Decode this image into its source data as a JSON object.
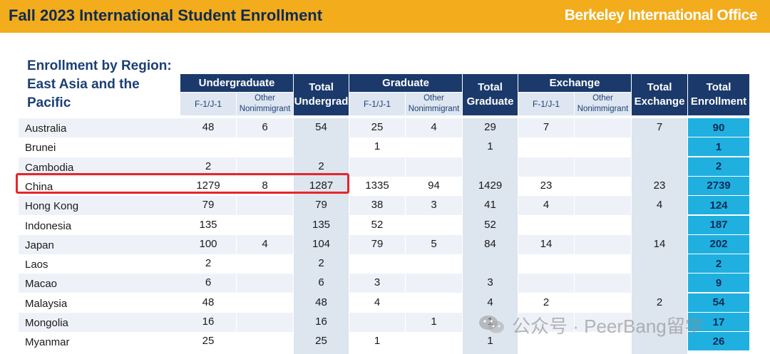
{
  "header": {
    "title": "Fall 2023 International Student Enrollment",
    "org": "Berkeley International Office"
  },
  "region_title": "Enrollment by Region: East Asia and the Pacific",
  "columns": {
    "undergraduate": "Undergraduate",
    "total_undergrad": "Total Undergrad",
    "graduate": "Graduate",
    "total_graduate": "Total Graduate",
    "exchange": "Exchange",
    "total_exchange": "Total Exchange",
    "total_enrollment": "Total Enrollment",
    "f1j1": "F-1/J-1",
    "other_nonimmigrant": "Other Nonimmigrant"
  },
  "rows": [
    {
      "name": "Australia",
      "ug_f1": "48",
      "ug_other": "6",
      "ug_total": "54",
      "gr_f1": "25",
      "gr_other": "4",
      "gr_total": "29",
      "ex_f1": "7",
      "ex_other": "",
      "ex_total": "7",
      "total": "90"
    },
    {
      "name": "Brunei",
      "ug_f1": "",
      "ug_other": "",
      "ug_total": "",
      "gr_f1": "1",
      "gr_other": "",
      "gr_total": "1",
      "ex_f1": "",
      "ex_other": "",
      "ex_total": "",
      "total": "1"
    },
    {
      "name": "Cambodia",
      "ug_f1": "2",
      "ug_other": "",
      "ug_total": "2",
      "gr_f1": "",
      "gr_other": "",
      "gr_total": "",
      "ex_f1": "",
      "ex_other": "",
      "ex_total": "",
      "total": "2"
    },
    {
      "name": "China",
      "ug_f1": "1279",
      "ug_other": "8",
      "ug_total": "1287",
      "gr_f1": "1335",
      "gr_other": "94",
      "gr_total": "1429",
      "ex_f1": "23",
      "ex_other": "",
      "ex_total": "23",
      "total": "2739"
    },
    {
      "name": "Hong Kong",
      "ug_f1": "79",
      "ug_other": "",
      "ug_total": "79",
      "gr_f1": "38",
      "gr_other": "3",
      "gr_total": "41",
      "ex_f1": "4",
      "ex_other": "",
      "ex_total": "4",
      "total": "124"
    },
    {
      "name": "Indonesia",
      "ug_f1": "135",
      "ug_other": "",
      "ug_total": "135",
      "gr_f1": "52",
      "gr_other": "",
      "gr_total": "52",
      "ex_f1": "",
      "ex_other": "",
      "ex_total": "",
      "total": "187"
    },
    {
      "name": "Japan",
      "ug_f1": "100",
      "ug_other": "4",
      "ug_total": "104",
      "gr_f1": "79",
      "gr_other": "5",
      "gr_total": "84",
      "ex_f1": "14",
      "ex_other": "",
      "ex_total": "14",
      "total": "202"
    },
    {
      "name": "Laos",
      "ug_f1": "2",
      "ug_other": "",
      "ug_total": "2",
      "gr_f1": "",
      "gr_other": "",
      "gr_total": "",
      "ex_f1": "",
      "ex_other": "",
      "ex_total": "",
      "total": "2"
    },
    {
      "name": "Macao",
      "ug_f1": "6",
      "ug_other": "",
      "ug_total": "6",
      "gr_f1": "3",
      "gr_other": "",
      "gr_total": "3",
      "ex_f1": "",
      "ex_other": "",
      "ex_total": "",
      "total": "9"
    },
    {
      "name": "Malaysia",
      "ug_f1": "48",
      "ug_other": "",
      "ug_total": "48",
      "gr_f1": "4",
      "gr_other": "",
      "gr_total": "4",
      "ex_f1": "2",
      "ex_other": "",
      "ex_total": "2",
      "total": "54"
    },
    {
      "name": "Mongolia",
      "ug_f1": "16",
      "ug_other": "",
      "ug_total": "16",
      "gr_f1": "",
      "gr_other": "1",
      "gr_total": "1",
      "ex_f1": "",
      "ex_other": "",
      "ex_total": "",
      "total": "17"
    },
    {
      "name": "Myanmar",
      "ug_f1": "25",
      "ug_other": "",
      "ug_total": "25",
      "gr_f1": "1",
      "gr_other": "",
      "gr_total": "1",
      "ex_f1": "",
      "ex_other": "",
      "ex_total": "",
      "total": "26"
    }
  ],
  "watermark": "公众号 · PeerBang留学",
  "colors": {
    "header_bar": "#f2ac1c",
    "header_navy": "#1b3a6b",
    "total_enrollment_cyan": "#1fb0e0",
    "highlight_red": "#e5262b"
  }
}
